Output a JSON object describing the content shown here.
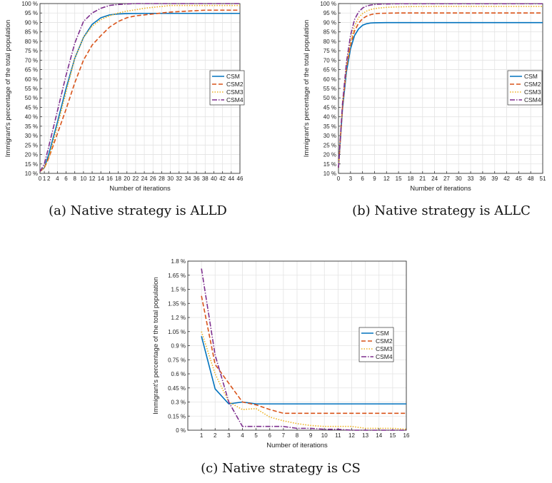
{
  "styles": {
    "CSM": {
      "color": "#0072BD",
      "dash": "",
      "width": 1.6
    },
    "CSM2": {
      "color": "#D95319",
      "dash": "6,3",
      "width": 1.6
    },
    "CSM3": {
      "color": "#EDB120",
      "dash": "1.5,2",
      "width": 1.6
    },
    "CSM4": {
      "color": "#7E2F8E",
      "dash": "7,2,1.5,2",
      "width": 1.6
    }
  },
  "chart_data": [
    {
      "id": "a",
      "type": "line",
      "caption": "(a) Native strategy is ALLD",
      "xlabel": "Number of iterations",
      "ylabel": "Immigrant's percentage of the total population",
      "xlim": [
        0,
        46
      ],
      "ylim": [
        10,
        100
      ],
      "xticks": [
        0,
        1,
        2,
        4,
        6,
        8,
        10,
        12,
        14,
        16,
        18,
        20,
        22,
        24,
        26,
        28,
        30,
        32,
        34,
        36,
        38,
        40,
        42,
        44,
        46
      ],
      "yticks": [
        10,
        15,
        20,
        25,
        30,
        35,
        40,
        45,
        50,
        55,
        60,
        65,
        70,
        75,
        80,
        85,
        90,
        95,
        100
      ],
      "yunit": " %",
      "grid": true,
      "legend": "center-right",
      "series": [
        {
          "name": "CSM",
          "x": [
            0,
            1,
            2,
            4,
            6,
            8,
            10,
            12,
            14,
            16,
            18,
            20,
            24,
            28,
            32,
            36,
            40,
            46
          ],
          "y": [
            11,
            13,
            20,
            37,
            55,
            71,
            82,
            89,
            92.5,
            94,
            94.5,
            94.7,
            94.8,
            94.8,
            94.8,
            94.8,
            94.8,
            94.8
          ]
        },
        {
          "name": "CSM2",
          "x": [
            0,
            1,
            2,
            4,
            6,
            8,
            10,
            12,
            14,
            16,
            18,
            20,
            22,
            26,
            30,
            34,
            38,
            42,
            46
          ],
          "y": [
            11,
            13,
            18,
            31,
            44,
            58,
            70,
            78,
            83,
            87.5,
            90.5,
            92.5,
            93.5,
            94.5,
            95.5,
            96,
            96.5,
            96.5,
            96.5
          ]
        },
        {
          "name": "CSM3",
          "x": [
            0,
            1,
            2,
            4,
            6,
            8,
            10,
            12,
            14,
            16,
            18,
            20,
            22,
            24,
            26,
            28,
            30,
            34,
            38,
            42,
            46
          ],
          "y": [
            11,
            13,
            18,
            35,
            53,
            71,
            82,
            88,
            91.5,
            93.5,
            95,
            96,
            96.7,
            97.5,
            98,
            98.5,
            99,
            99,
            99,
            99,
            99
          ]
        },
        {
          "name": "CSM4",
          "x": [
            0,
            1,
            2,
            4,
            6,
            8,
            10,
            12,
            14,
            16,
            18,
            20,
            22,
            26,
            30,
            36,
            46
          ],
          "y": [
            11,
            15,
            24,
            43,
            62,
            79,
            90.5,
            95,
            97.5,
            99,
            99.5,
            99.8,
            100,
            100,
            100,
            100,
            100
          ]
        }
      ]
    },
    {
      "id": "b",
      "type": "line",
      "caption": "(b) Native strategy is ALLC",
      "xlabel": "Number of iterations",
      "ylabel": "Immigrant's percentage of the total population",
      "xlim": [
        0,
        51
      ],
      "ylim": [
        10,
        100
      ],
      "xticks": [
        0,
        3,
        6,
        9,
        12,
        15,
        18,
        21,
        24,
        27,
        30,
        33,
        36,
        39,
        42,
        45,
        48,
        51
      ],
      "yticks": [
        10,
        15,
        20,
        25,
        30,
        35,
        40,
        45,
        50,
        55,
        60,
        65,
        70,
        75,
        80,
        85,
        90,
        95,
        100
      ],
      "yunit": " %",
      "grid": true,
      "legend": "center-right",
      "series": [
        {
          "name": "CSM",
          "x": [
            0,
            1,
            2,
            3,
            4,
            5,
            6,
            7,
            8,
            9,
            12,
            15,
            20,
            30,
            40,
            51
          ],
          "y": [
            13,
            44,
            64,
            76,
            83,
            86.5,
            88.5,
            89.3,
            89.7,
            89.8,
            89.9,
            89.9,
            89.9,
            89.9,
            89.9,
            89.9
          ]
        },
        {
          "name": "CSM2",
          "x": [
            0,
            1,
            2,
            3,
            4,
            5,
            6,
            7,
            8,
            9,
            10,
            12,
            15,
            20,
            30,
            40,
            51
          ],
          "y": [
            13,
            45,
            66,
            78,
            85.5,
            89.5,
            92,
            93.3,
            94.1,
            94.6,
            94.8,
            94.9,
            95,
            95,
            95,
            95,
            95
          ]
        },
        {
          "name": "CSM3",
          "x": [
            0,
            1,
            2,
            3,
            4,
            5,
            6,
            7,
            8,
            9,
            10,
            12,
            14,
            18,
            24,
            30,
            51
          ],
          "y": [
            13,
            46,
            67,
            80,
            88,
            92.5,
            94.7,
            96,
            96.8,
            97.3,
            97.6,
            98,
            98.2,
            98.4,
            98.5,
            98.5,
            98.5
          ]
        },
        {
          "name": "CSM4",
          "x": [
            0,
            1,
            2,
            3,
            4,
            5,
            6,
            7,
            8,
            9,
            10,
            12,
            15,
            20,
            30,
            51
          ],
          "y": [
            13,
            47,
            69,
            83,
            91.5,
            95.5,
            97.6,
            98.7,
            99.2,
            99.5,
            99.7,
            99.8,
            99.9,
            99.9,
            99.9,
            99.9
          ]
        }
      ]
    },
    {
      "id": "c",
      "type": "line",
      "caption": "(c) Native strategy is CS",
      "xlabel": "Number of iterations",
      "ylabel": "Immigrant's percentage of the total population",
      "xlim": [
        0,
        16
      ],
      "ylim": [
        0,
        1.8
      ],
      "xticks": [
        1,
        2,
        3,
        4,
        5,
        6,
        7,
        8,
        9,
        10,
        11,
        12,
        13,
        14,
        15,
        16
      ],
      "yticks": [
        0,
        0.15,
        0.3,
        0.45,
        0.6,
        0.75,
        0.9,
        1.05,
        1.2,
        1.35,
        1.5,
        1.65,
        1.8
      ],
      "yunit": " %",
      "grid": true,
      "legend": "center-right",
      "series": [
        {
          "name": "CSM",
          "x": [
            1,
            2,
            3,
            4,
            5,
            6,
            7,
            8,
            9,
            10,
            11,
            12,
            13,
            14,
            15,
            16
          ],
          "y": [
            1.0,
            0.44,
            0.28,
            0.3,
            0.28,
            0.28,
            0.28,
            0.28,
            0.28,
            0.28,
            0.28,
            0.28,
            0.28,
            0.28,
            0.28,
            0.28
          ]
        },
        {
          "name": "CSM2",
          "x": [
            1,
            2,
            3,
            4,
            5,
            6,
            7,
            8,
            9,
            10,
            11,
            12,
            13,
            14,
            15,
            16
          ],
          "y": [
            1.43,
            0.7,
            0.5,
            0.3,
            0.27,
            0.22,
            0.18,
            0.18,
            0.18,
            0.18,
            0.18,
            0.18,
            0.18,
            0.18,
            0.18,
            0.18
          ]
        },
        {
          "name": "CSM3",
          "x": [
            1,
            2,
            3,
            4,
            5,
            6,
            7,
            8,
            9,
            10,
            11,
            12,
            13,
            14,
            15,
            16
          ],
          "y": [
            1.05,
            0.6,
            0.3,
            0.22,
            0.23,
            0.14,
            0.1,
            0.07,
            0.05,
            0.04,
            0.04,
            0.04,
            0.02,
            0.02,
            0.02,
            0.01
          ]
        },
        {
          "name": "CSM4",
          "x": [
            1,
            2,
            3,
            4,
            5,
            6,
            7,
            8,
            9,
            10,
            11,
            12,
            13,
            14,
            15,
            16
          ],
          "y": [
            1.72,
            0.8,
            0.3,
            0.04,
            0.04,
            0.04,
            0.04,
            0.02,
            0.02,
            0.01,
            0.01,
            0.0,
            0.0,
            0.0,
            0.0,
            0.0
          ]
        }
      ]
    }
  ]
}
